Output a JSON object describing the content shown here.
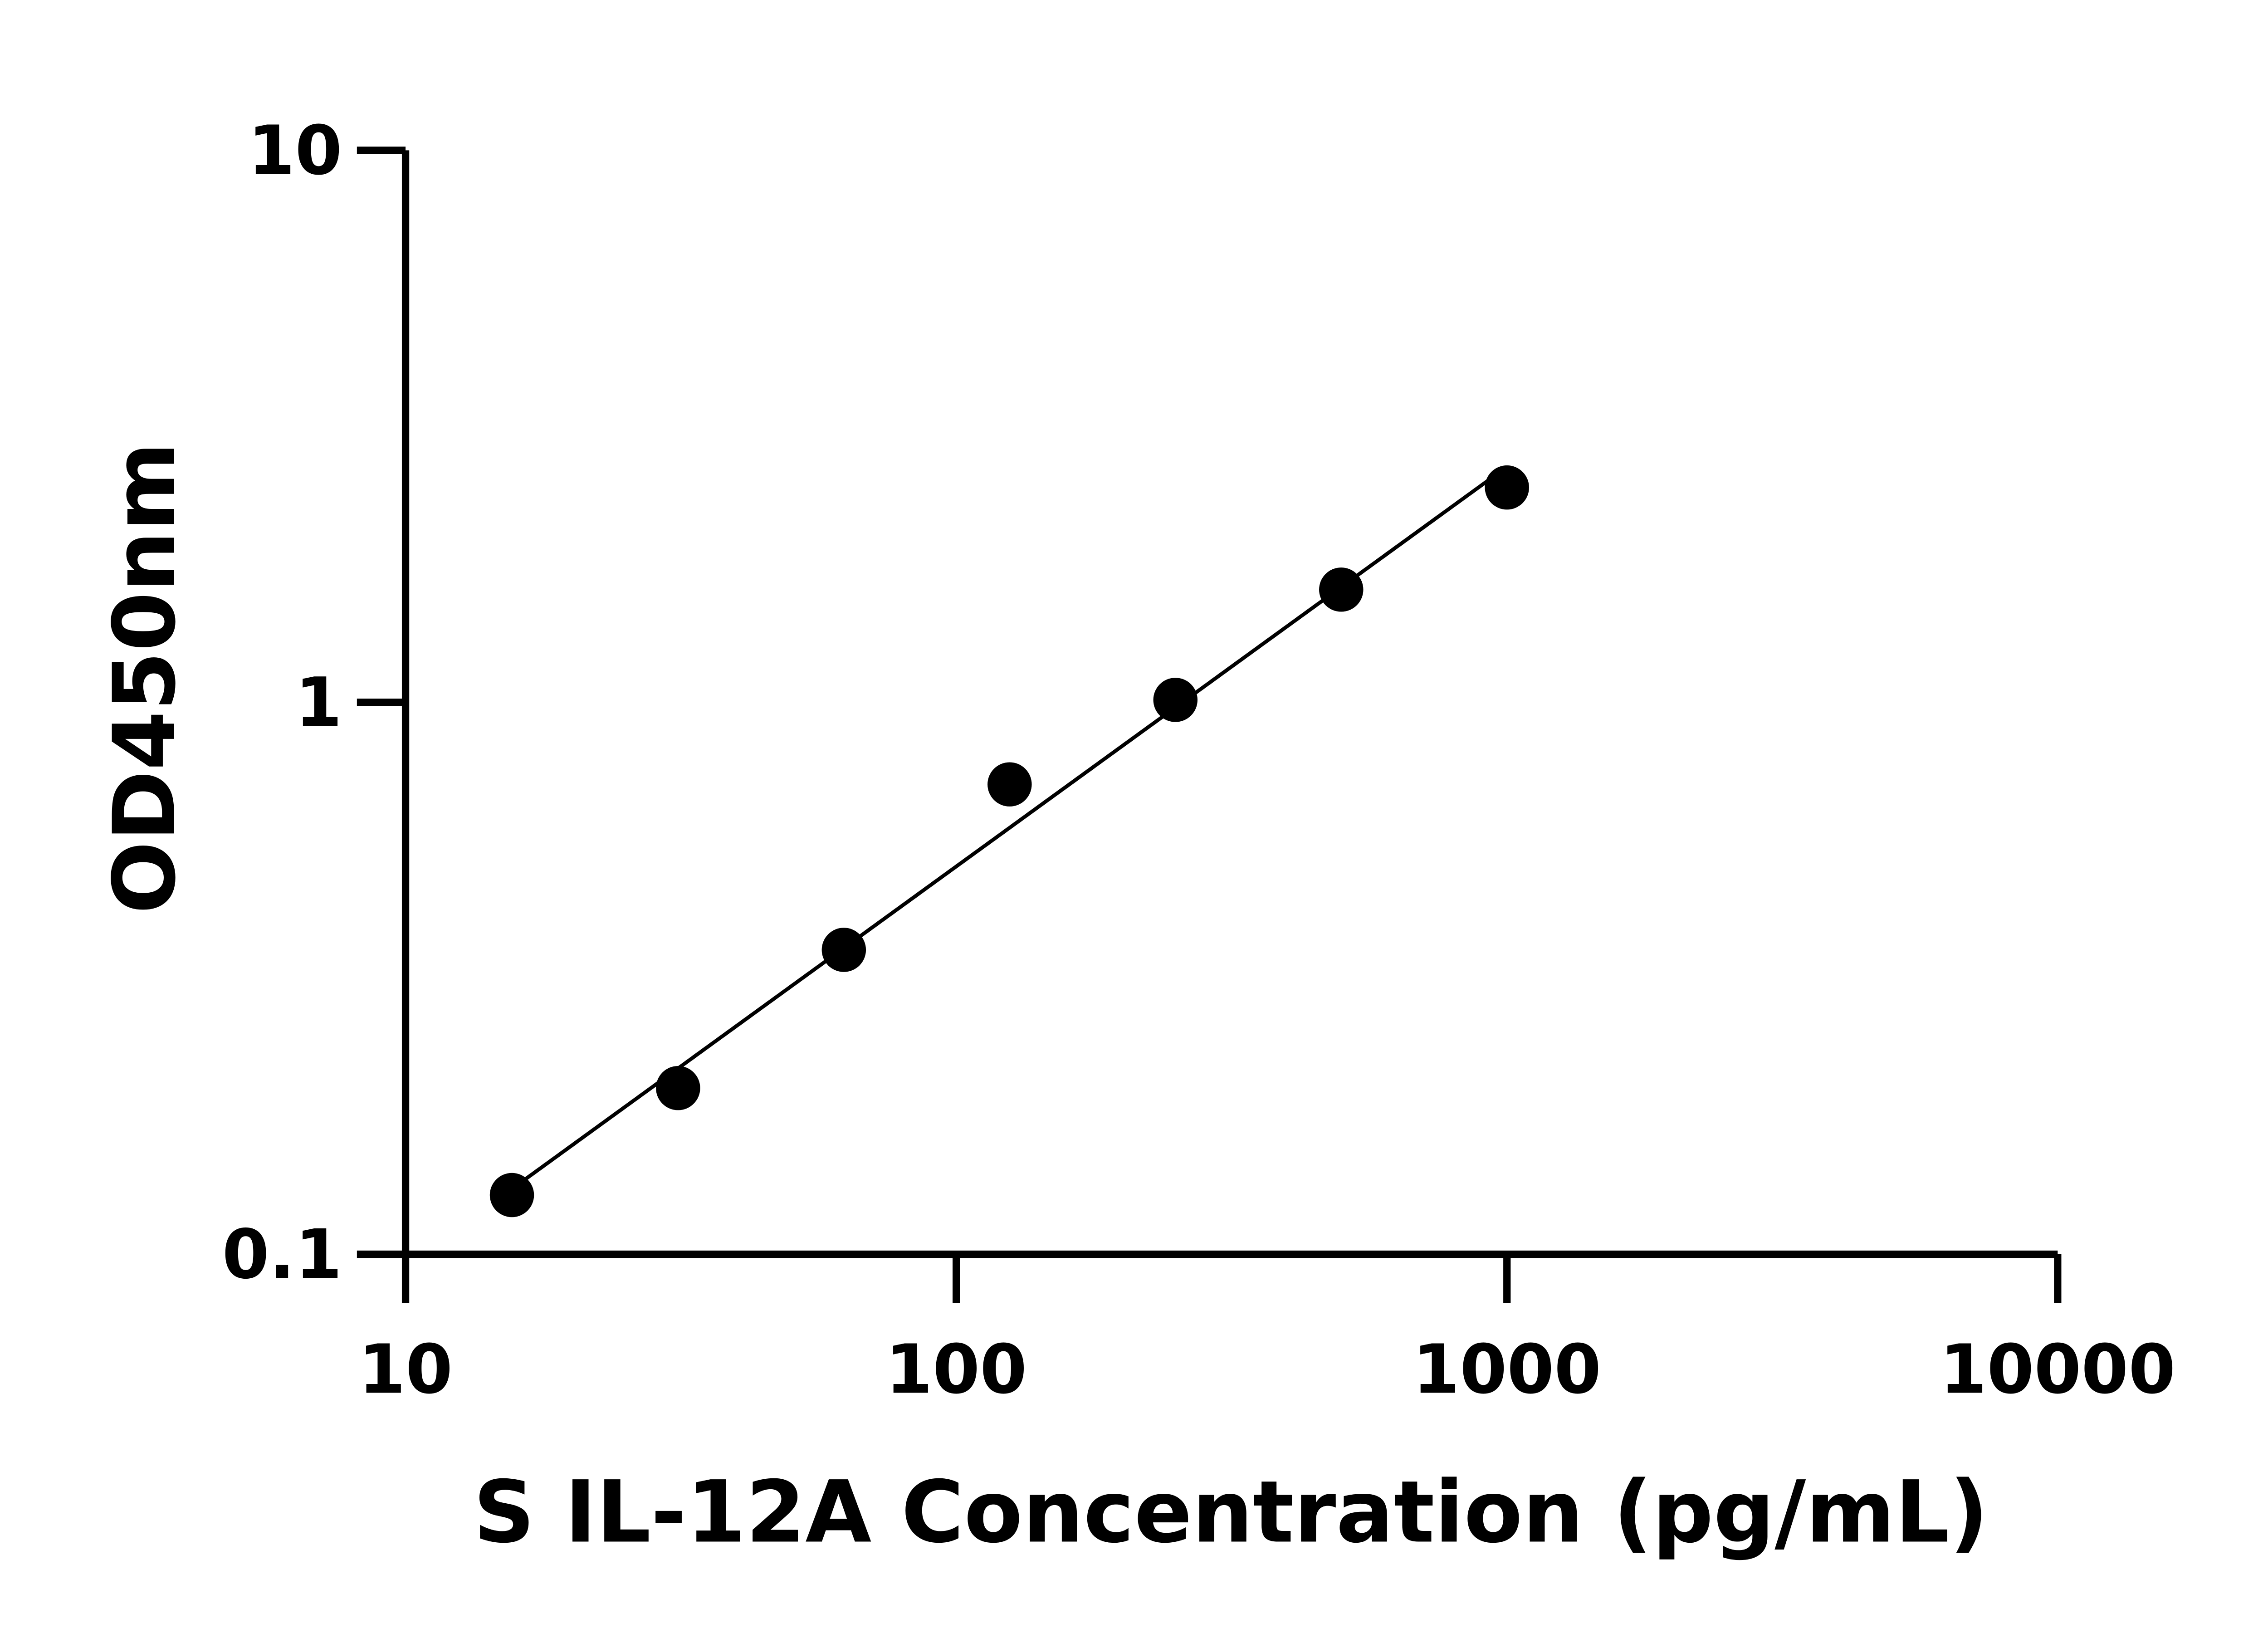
{
  "chart_data": {
    "type": "scatter",
    "title": "",
    "xlabel": "S IL-12A Concentration (pg/mL)",
    "ylabel": "OD450nm",
    "x_scale": "log",
    "y_scale": "log",
    "xlim": [
      10,
      10000
    ],
    "ylim": [
      0.1,
      10
    ],
    "x_ticks": [
      "10",
      "100",
      "1000",
      "10000"
    ],
    "y_ticks": [
      "0.1",
      "1",
      "10"
    ],
    "grid": false,
    "legend": "none",
    "fit_line": "log-log linear fit through standards",
    "series": [
      {
        "x": [
          15.6,
          31.25,
          62.5,
          125,
          250,
          500,
          1000
        ],
        "y": [
          0.128,
          0.2,
          0.356,
          0.71,
          1.01,
          1.6,
          2.45
        ]
      }
    ],
    "colors": {
      "points": "#000000",
      "line": "#000000",
      "axes": "#000000"
    }
  }
}
